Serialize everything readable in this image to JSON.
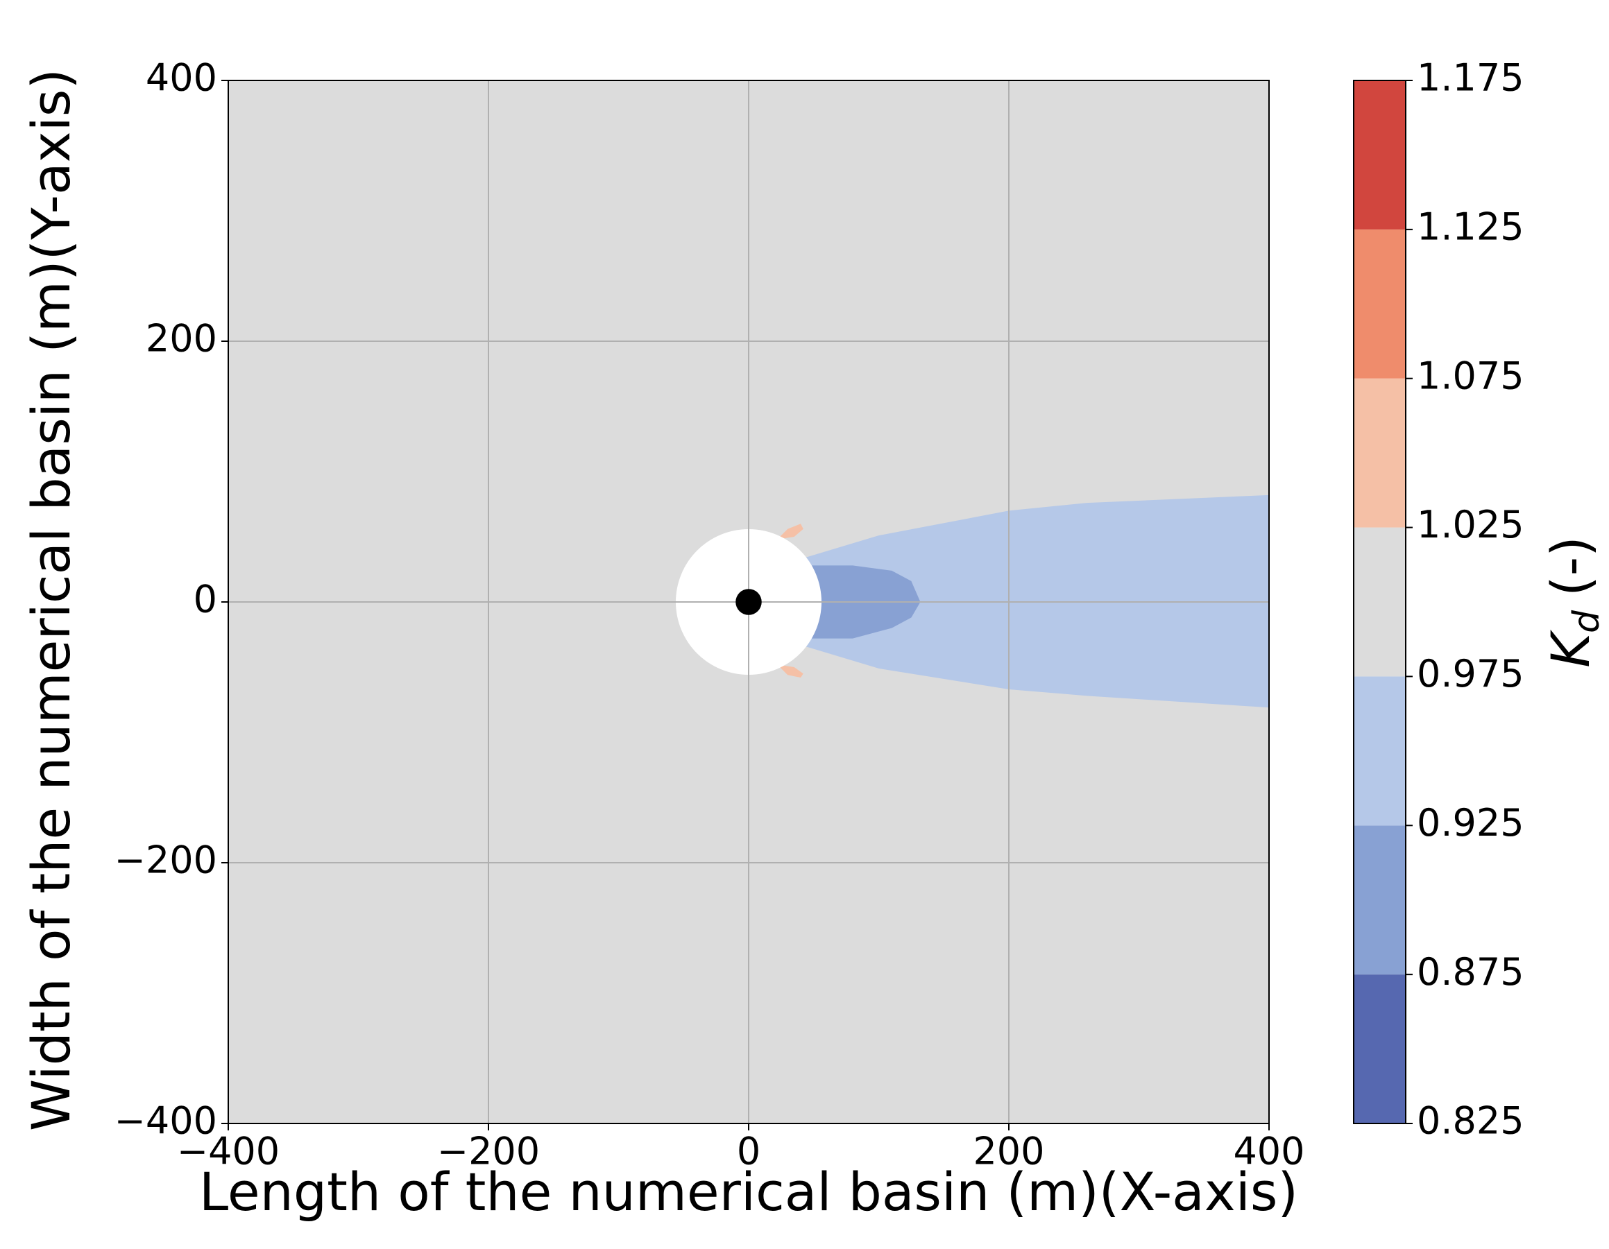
{
  "chart_data": {
    "type": "contour",
    "xlabel": "Length of the numerical basin (m)(X-axis)",
    "ylabel": "Width of the numerical basin (m)(Y-axis)",
    "xlim": [
      -400,
      400
    ],
    "ylim": [
      -400,
      400
    ],
    "xticks": [
      {
        "value": -400,
        "label": "−400"
      },
      {
        "value": -200,
        "label": "−200"
      },
      0,
      200,
      400
    ],
    "yticks": [
      {
        "value": -400,
        "label": "−400"
      },
      {
        "value": -200,
        "label": "−200"
      },
      0,
      200,
      400
    ],
    "grid": true,
    "regions": [
      {
        "color": "#dcdcdc",
        "x": [
          -400,
          400,
          400,
          -400
        ],
        "y": [
          400,
          400,
          -400,
          -400
        ]
      },
      {
        "color": "#b5c8e8",
        "x": [
          30,
          100,
          200,
          260,
          400,
          400,
          260,
          200,
          100,
          30
        ],
        "y": [
          30,
          51,
          70,
          76,
          82,
          -81,
          -72,
          -67,
          -51,
          -30
        ]
      },
      {
        "color": "#88a1d3",
        "x": [
          45,
          80,
          110,
          125,
          132,
          125,
          110,
          80,
          45
        ],
        "y": [
          28,
          28,
          24,
          16,
          0,
          -12,
          -20,
          -28,
          -28
        ]
      },
      {
        "color": "#f5c0a6",
        "x": [
          22,
          30,
          40,
          42,
          35
        ],
        "y": [
          48,
          56,
          60,
          56,
          50
        ]
      },
      {
        "color": "#f5c0a6",
        "x": [
          22,
          30,
          40,
          42,
          35
        ],
        "y": [
          -48,
          -56,
          -58,
          -55,
          -50
        ]
      }
    ],
    "mask_radius": 56,
    "structure_radius": 10,
    "colorbar": {
      "label": {
        "symbol": "K",
        "subscript": "d",
        "unit": "(-)"
      },
      "levels": [
        0.825,
        0.875,
        0.925,
        0.975,
        1.025,
        1.075,
        1.125,
        1.175
      ],
      "colors": [
        "#5668b0",
        "#88a1d3",
        "#b5c8e8",
        "#dcdcdc",
        "#f5c0a6",
        "#ef8c6c",
        "#d1463e"
      ]
    }
  }
}
